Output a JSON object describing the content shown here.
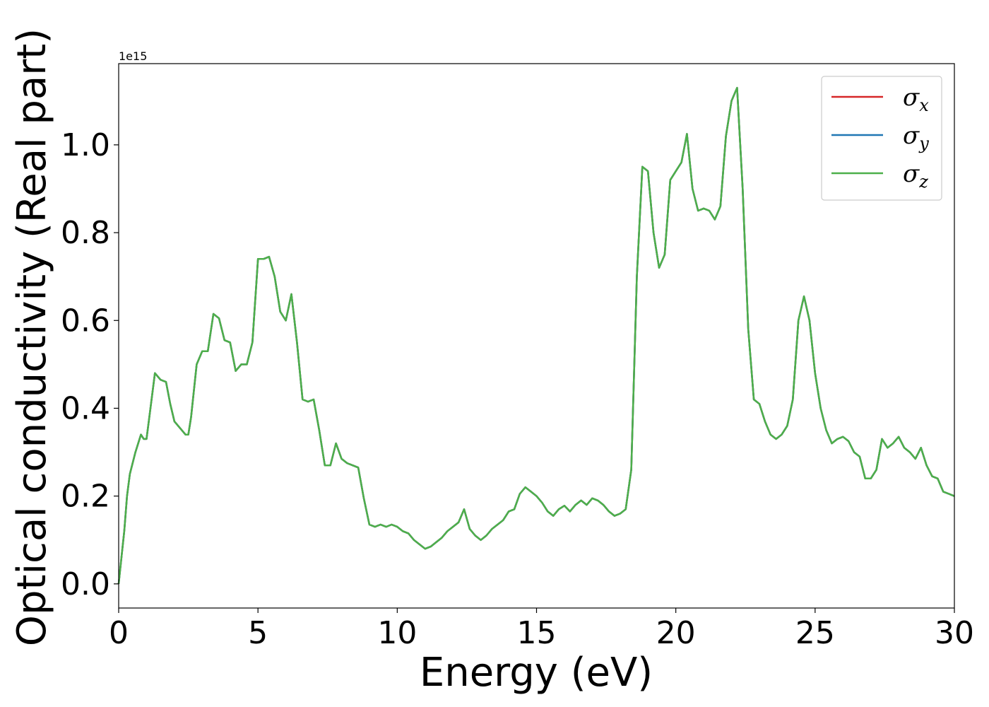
{
  "chart_data": {
    "type": "line",
    "xlabel": "Energy (eV)",
    "ylabel": "Optical conductivity (Real part)",
    "y_offset_label": "1e15",
    "xlim": [
      0,
      30
    ],
    "ylim": [
      -0.055,
      1.185
    ],
    "y_scale_factor": 1000000000000000.0,
    "x_ticks": [
      0,
      5,
      10,
      15,
      20,
      25,
      30
    ],
    "x_tick_labels": [
      "0",
      "5",
      "10",
      "15",
      "20",
      "25",
      "30"
    ],
    "y_ticks": [
      0.0,
      0.2,
      0.4,
      0.6,
      0.8,
      1.0
    ],
    "y_tick_labels": [
      "0.0",
      "0.2",
      "0.4",
      "0.6",
      "0.8",
      "1.0"
    ],
    "grid": false,
    "legend_position": "top-right",
    "legend": [
      {
        "base": "σ",
        "sub": "x",
        "color": "#d62728"
      },
      {
        "base": "σ",
        "sub": "y",
        "color": "#1f77b4"
      },
      {
        "base": "σ",
        "sub": "z",
        "color": "#4daf4a"
      }
    ],
    "x": [
      0,
      0.1,
      0.2,
      0.3,
      0.4,
      0.6,
      0.8,
      0.9,
      1.0,
      1.1,
      1.3,
      1.5,
      1.7,
      1.85,
      2.0,
      2.2,
      2.4,
      2.5,
      2.6,
      2.8,
      3.0,
      3.2,
      3.4,
      3.6,
      3.8,
      4.0,
      4.2,
      4.4,
      4.6,
      4.8,
      5.0,
      5.2,
      5.4,
      5.6,
      5.8,
      6.0,
      6.2,
      6.4,
      6.6,
      6.8,
      7.0,
      7.2,
      7.4,
      7.6,
      7.8,
      8.0,
      8.2,
      8.4,
      8.6,
      8.8,
      9.0,
      9.2,
      9.4,
      9.6,
      9.8,
      10.0,
      10.2,
      10.4,
      10.6,
      10.8,
      11.0,
      11.2,
      11.4,
      11.6,
      11.8,
      12.0,
      12.2,
      12.4,
      12.6,
      12.8,
      13.0,
      13.2,
      13.4,
      13.6,
      13.8,
      14.0,
      14.2,
      14.4,
      14.6,
      14.8,
      15.0,
      15.2,
      15.4,
      15.6,
      15.8,
      16.0,
      16.2,
      16.4,
      16.6,
      16.8,
      17.0,
      17.2,
      17.4,
      17.6,
      17.8,
      18.0,
      18.2,
      18.4,
      18.6,
      18.8,
      19.0,
      19.2,
      19.4,
      19.6,
      19.8,
      20.0,
      20.2,
      20.4,
      20.6,
      20.8,
      21.0,
      21.2,
      21.4,
      21.6,
      21.8,
      22.0,
      22.2,
      22.4,
      22.6,
      22.8,
      23.0,
      23.2,
      23.4,
      23.6,
      23.8,
      24.0,
      24.2,
      24.4,
      24.6,
      24.8,
      25.0,
      25.2,
      25.4,
      25.6,
      25.8,
      26.0,
      26.2,
      26.4,
      26.6,
      26.8,
      27.0,
      27.2,
      27.4,
      27.6,
      27.8,
      28.0,
      28.2,
      28.4,
      28.6,
      28.8,
      29.0,
      29.2,
      29.4,
      29.6,
      29.8,
      30.0
    ],
    "series": [
      {
        "name": "σx",
        "color": "#d62728",
        "values": [
          0.0,
          0.06,
          0.12,
          0.2,
          0.25,
          0.3,
          0.34,
          0.33,
          0.33,
          0.38,
          0.48,
          0.465,
          0.46,
          0.41,
          0.37,
          0.355,
          0.34,
          0.34,
          0.38,
          0.5,
          0.53,
          0.53,
          0.615,
          0.605,
          0.555,
          0.55,
          0.485,
          0.5,
          0.5,
          0.55,
          0.74,
          0.74,
          0.745,
          0.7,
          0.62,
          0.6,
          0.66,
          0.55,
          0.42,
          0.415,
          0.42,
          0.35,
          0.27,
          0.27,
          0.32,
          0.285,
          0.275,
          0.27,
          0.265,
          0.195,
          0.135,
          0.13,
          0.135,
          0.13,
          0.135,
          0.13,
          0.12,
          0.115,
          0.1,
          0.09,
          0.08,
          0.085,
          0.095,
          0.105,
          0.12,
          0.13,
          0.14,
          0.17,
          0.125,
          0.11,
          0.1,
          0.11,
          0.125,
          0.135,
          0.145,
          0.165,
          0.17,
          0.205,
          0.22,
          0.21,
          0.2,
          0.185,
          0.165,
          0.155,
          0.17,
          0.178,
          0.165,
          0.18,
          0.19,
          0.18,
          0.195,
          0.19,
          0.18,
          0.165,
          0.155,
          0.16,
          0.17,
          0.26,
          0.7,
          0.95,
          0.94,
          0.8,
          0.72,
          0.75,
          0.92,
          0.94,
          0.96,
          1.025,
          0.9,
          0.85,
          0.855,
          0.85,
          0.83,
          0.86,
          1.02,
          1.1,
          1.13,
          0.9,
          0.58,
          0.42,
          0.41,
          0.37,
          0.34,
          0.33,
          0.34,
          0.36,
          0.42,
          0.6,
          0.655,
          0.6,
          0.48,
          0.4,
          0.35,
          0.32,
          0.33,
          0.335,
          0.325,
          0.3,
          0.29,
          0.24,
          0.24,
          0.26,
          0.33,
          0.31,
          0.32,
          0.335,
          0.31,
          0.3,
          0.285,
          0.31,
          0.27,
          0.245,
          0.24,
          0.21,
          0.205,
          0.2
        ]
      },
      {
        "name": "σy",
        "color": "#1f77b4",
        "values": [
          0.0,
          0.06,
          0.12,
          0.2,
          0.25,
          0.3,
          0.34,
          0.33,
          0.33,
          0.38,
          0.48,
          0.465,
          0.46,
          0.41,
          0.37,
          0.355,
          0.34,
          0.34,
          0.38,
          0.5,
          0.53,
          0.53,
          0.615,
          0.605,
          0.555,
          0.55,
          0.485,
          0.5,
          0.5,
          0.55,
          0.74,
          0.74,
          0.745,
          0.7,
          0.62,
          0.6,
          0.66,
          0.55,
          0.42,
          0.415,
          0.42,
          0.35,
          0.27,
          0.27,
          0.32,
          0.285,
          0.275,
          0.27,
          0.265,
          0.195,
          0.135,
          0.13,
          0.135,
          0.13,
          0.135,
          0.13,
          0.12,
          0.115,
          0.1,
          0.09,
          0.08,
          0.085,
          0.095,
          0.105,
          0.12,
          0.13,
          0.14,
          0.17,
          0.125,
          0.11,
          0.1,
          0.11,
          0.125,
          0.135,
          0.145,
          0.165,
          0.17,
          0.205,
          0.22,
          0.21,
          0.2,
          0.185,
          0.165,
          0.155,
          0.17,
          0.178,
          0.165,
          0.18,
          0.19,
          0.18,
          0.195,
          0.19,
          0.18,
          0.165,
          0.155,
          0.16,
          0.17,
          0.26,
          0.7,
          0.95,
          0.94,
          0.8,
          0.72,
          0.75,
          0.92,
          0.94,
          0.96,
          1.025,
          0.9,
          0.85,
          0.855,
          0.85,
          0.83,
          0.86,
          1.02,
          1.1,
          1.13,
          0.9,
          0.58,
          0.42,
          0.41,
          0.37,
          0.34,
          0.33,
          0.34,
          0.36,
          0.42,
          0.6,
          0.655,
          0.6,
          0.48,
          0.4,
          0.35,
          0.32,
          0.33,
          0.335,
          0.325,
          0.3,
          0.29,
          0.24,
          0.24,
          0.26,
          0.33,
          0.31,
          0.32,
          0.335,
          0.31,
          0.3,
          0.285,
          0.31,
          0.27,
          0.245,
          0.24,
          0.21,
          0.205,
          0.2
        ]
      },
      {
        "name": "σz",
        "color": "#4daf4a",
        "values": [
          0.0,
          0.06,
          0.12,
          0.2,
          0.25,
          0.3,
          0.34,
          0.33,
          0.33,
          0.38,
          0.48,
          0.465,
          0.46,
          0.41,
          0.37,
          0.355,
          0.34,
          0.34,
          0.38,
          0.5,
          0.53,
          0.53,
          0.615,
          0.605,
          0.555,
          0.55,
          0.485,
          0.5,
          0.5,
          0.55,
          0.74,
          0.74,
          0.745,
          0.7,
          0.62,
          0.6,
          0.66,
          0.55,
          0.42,
          0.415,
          0.42,
          0.35,
          0.27,
          0.27,
          0.32,
          0.285,
          0.275,
          0.27,
          0.265,
          0.195,
          0.135,
          0.13,
          0.135,
          0.13,
          0.135,
          0.13,
          0.12,
          0.115,
          0.1,
          0.09,
          0.08,
          0.085,
          0.095,
          0.105,
          0.12,
          0.13,
          0.14,
          0.17,
          0.125,
          0.11,
          0.1,
          0.11,
          0.125,
          0.135,
          0.145,
          0.165,
          0.17,
          0.205,
          0.22,
          0.21,
          0.2,
          0.185,
          0.165,
          0.155,
          0.17,
          0.178,
          0.165,
          0.18,
          0.19,
          0.18,
          0.195,
          0.19,
          0.18,
          0.165,
          0.155,
          0.16,
          0.17,
          0.26,
          0.7,
          0.95,
          0.94,
          0.8,
          0.72,
          0.75,
          0.92,
          0.94,
          0.96,
          1.025,
          0.9,
          0.85,
          0.855,
          0.85,
          0.83,
          0.86,
          1.02,
          1.1,
          1.13,
          0.9,
          0.58,
          0.42,
          0.41,
          0.37,
          0.34,
          0.33,
          0.34,
          0.36,
          0.42,
          0.6,
          0.655,
          0.6,
          0.48,
          0.4,
          0.35,
          0.32,
          0.33,
          0.335,
          0.325,
          0.3,
          0.29,
          0.24,
          0.24,
          0.26,
          0.33,
          0.31,
          0.32,
          0.335,
          0.31,
          0.3,
          0.285,
          0.31,
          0.27,
          0.245,
          0.24,
          0.21,
          0.205,
          0.2
        ]
      }
    ]
  }
}
